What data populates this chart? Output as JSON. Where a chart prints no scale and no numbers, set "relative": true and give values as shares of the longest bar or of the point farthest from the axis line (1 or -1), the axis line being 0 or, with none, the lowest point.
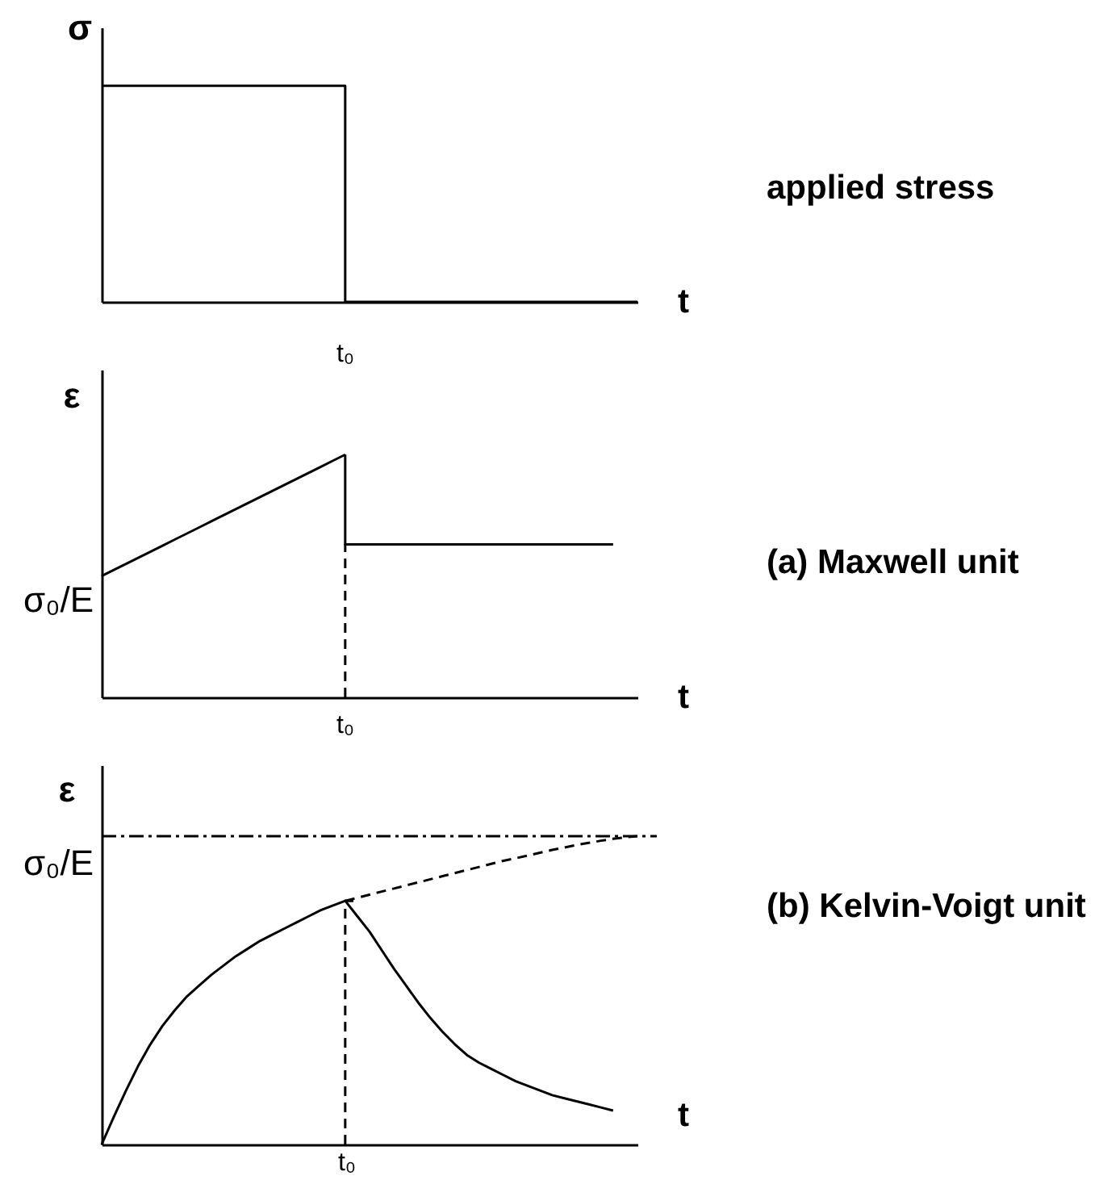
{
  "chart_data": [
    {
      "type": "line",
      "xlabel": "t",
      "ylabel": "σ",
      "relative": true,
      "categories": [
        null,
        null,
        null,
        null,
        null,
        null,
        null,
        null,
        null,
        null,
        null,
        null,
        null,
        null,
        null,
        null,
        null,
        null,
        null,
        null,
        null,
        null,
        null,
        null,
        null,
        null,
        null,
        null,
        null,
        null,
        null,
        null,
        null,
        null,
        null,
        null,
        null,
        null,
        null,
        null,
        null,
        null,
        null,
        null,
        null
      ],
      "series": [
        {
          "type": "step",
          "color": "#000000",
          "line_style": "solid",
          "values": [
            1,
            1,
            1,
            1,
            1,
            1,
            1,
            1,
            1,
            1,
            1,
            1,
            1,
            1,
            1,
            1,
            1,
            1,
            1,
            1,
            1,
            0,
            0,
            0,
            0,
            0,
            0,
            0,
            0,
            0,
            0,
            0,
            0,
            0,
            0,
            0,
            0,
            0,
            0,
            0,
            0,
            0,
            0,
            0,
            0
          ]
        }
      ],
      "annotations": [
        "t₀",
        "applied stress"
      ]
    },
    {
      "type": "line",
      "xlabel": "t",
      "ylabel": "ε",
      "relative": true,
      "categories": [
        null,
        null,
        null,
        null,
        null,
        null,
        null,
        null,
        null,
        null,
        null,
        null,
        null,
        null,
        null,
        null,
        null,
        null,
        null,
        null,
        null,
        null,
        null,
        null,
        null,
        null,
        null,
        null,
        null,
        null,
        null,
        null,
        null,
        null,
        null,
        null,
        null,
        null,
        null,
        null,
        null,
        null,
        null,
        null,
        null
      ],
      "series": [
        {
          "color": "#000000",
          "line_style": "solid",
          "values": [
            0.5,
            0.525,
            0.55,
            0.575,
            0.6,
            0.625,
            0.65,
            0.675,
            0.7,
            0.725,
            0.75,
            0.775,
            0.8,
            0.825,
            0.85,
            0.875,
            0.9,
            0.925,
            0.95,
            0.975,
            1,
            null,
            null,
            null,
            null,
            null,
            null,
            null,
            null,
            null,
            null,
            null,
            null,
            null,
            null,
            null,
            null,
            null,
            null,
            null,
            null,
            null,
            null,
            null,
            null
          ]
        },
        {
          "type": "step",
          "color": "#000000",
          "line_style": "solid",
          "values": [
            null,
            null,
            null,
            null,
            null,
            null,
            null,
            null,
            null,
            null,
            null,
            null,
            null,
            null,
            null,
            null,
            null,
            null,
            null,
            null,
            1,
            0.63,
            0.63,
            0.63,
            0.63,
            0.63,
            0.63,
            0.63,
            0.63,
            0.63,
            0.63,
            0.63,
            0.63,
            0.63,
            0.63,
            0.63,
            0.63,
            0.63,
            0.63,
            0.63,
            0.63,
            0.63,
            0.63,
            null,
            null
          ]
        },
        {
          "type": "step",
          "color": "#000000",
          "line_style": "dashed",
          "values": [
            null,
            null,
            null,
            null,
            null,
            null,
            null,
            null,
            null,
            null,
            null,
            null,
            null,
            null,
            null,
            null,
            null,
            null,
            null,
            null,
            0,
            0.63,
            null,
            null,
            null,
            null,
            null,
            null,
            null,
            null,
            null,
            null,
            null,
            null,
            null,
            null,
            null,
            null,
            null,
            null,
            null,
            null,
            null,
            null,
            null
          ]
        }
      ],
      "annotations": [
        "σ₀/E",
        "t₀",
        "(a) Maxwell unit"
      ]
    },
    {
      "type": "line",
      "xlabel": "t",
      "ylabel": "ε",
      "relative": true,
      "categories": [
        null,
        null,
        null,
        null,
        null,
        null,
        null,
        null,
        null,
        null,
        null,
        null,
        null,
        null,
        null,
        null,
        null,
        null,
        null,
        null,
        null,
        null,
        null,
        null,
        null,
        null,
        null,
        null,
        null,
        null,
        null,
        null,
        null,
        null,
        null,
        null,
        null,
        null,
        null,
        null,
        null,
        null,
        null,
        null,
        null
      ],
      "series": [
        {
          "color": "#000000",
          "line_style": "solid",
          "values": [
            0,
            0.09,
            0.175,
            0.255,
            0.325,
            0.385,
            0.435,
            0.48,
            0.515,
            0.55,
            0.58,
            0.61,
            0.635,
            0.66,
            0.68,
            0.7,
            0.72,
            0.74,
            0.76,
            0.775,
            0.79,
            0.74,
            0.69,
            0.63,
            0.57,
            0.515,
            0.46,
            0.41,
            0.365,
            0.325,
            0.29,
            0.265,
            0.245,
            0.225,
            0.205,
            0.19,
            0.175,
            0.16,
            0.15,
            0.14,
            0.13,
            0.12,
            0.11,
            null,
            null
          ]
        },
        {
          "color": "#000000",
          "line_style": "dashed",
          "values": [
            null,
            null,
            null,
            null,
            null,
            null,
            null,
            null,
            null,
            null,
            null,
            null,
            null,
            null,
            null,
            null,
            null,
            null,
            null,
            null,
            0.79,
            0.8,
            0.81,
            0.82,
            0.83,
            0.84,
            0.85,
            0.86,
            0.87,
            0.88,
            0.89,
            0.9,
            0.91,
            0.92,
            0.928,
            0.937,
            0.946,
            0.955,
            0.963,
            0.971,
            0.978,
            0.985,
            0.991,
            0.996,
            1
          ]
        },
        {
          "type": "step",
          "color": "#000000",
          "line_style": "dashed",
          "values": [
            null,
            null,
            null,
            null,
            null,
            null,
            null,
            null,
            null,
            null,
            null,
            null,
            null,
            null,
            null,
            null,
            null,
            null,
            null,
            null,
            0,
            0.79,
            null,
            null,
            null,
            null,
            null,
            null,
            null,
            null,
            null,
            null,
            null,
            null,
            null,
            null,
            null,
            null,
            null,
            null,
            null,
            null,
            null,
            null,
            null
          ]
        }
      ],
      "ref_lines": [
        {
          "axis": "y",
          "value": 1,
          "label": "σ₀/E",
          "color": "#000000",
          "line_style": "dashdot"
        }
      ],
      "annotations": [
        "t₀",
        "(b) Kelvin-Voigt unit"
      ]
    }
  ]
}
